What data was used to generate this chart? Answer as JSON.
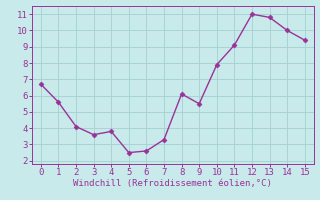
{
  "x": [
    0,
    1,
    2,
    3,
    4,
    5,
    6,
    7,
    8,
    9,
    10,
    11,
    12,
    13,
    14,
    15
  ],
  "y": [
    6.7,
    5.6,
    4.1,
    3.6,
    3.8,
    2.5,
    2.6,
    3.3,
    6.1,
    5.5,
    7.9,
    9.1,
    11.0,
    10.8,
    10.0,
    9.4
  ],
  "line_color": "#993399",
  "marker_color": "#993399",
  "bg_color": "#c8eaea",
  "grid_color": "#a8d4d4",
  "xlabel": "Windchill (Refroidissement éolien,°C)",
  "xlabel_color": "#993399",
  "tick_color": "#993399",
  "spine_color": "#993399",
  "ylim": [
    1.8,
    11.5
  ],
  "xlim": [
    -0.5,
    15.5
  ],
  "yticks": [
    2,
    3,
    4,
    5,
    6,
    7,
    8,
    9,
    10,
    11
  ],
  "xticks": [
    0,
    1,
    2,
    3,
    4,
    5,
    6,
    7,
    8,
    9,
    10,
    11,
    12,
    13,
    14,
    15
  ],
  "tick_fontsize": 6.5,
  "xlabel_fontsize": 6.5,
  "linewidth": 1.0,
  "markersize": 2.5
}
